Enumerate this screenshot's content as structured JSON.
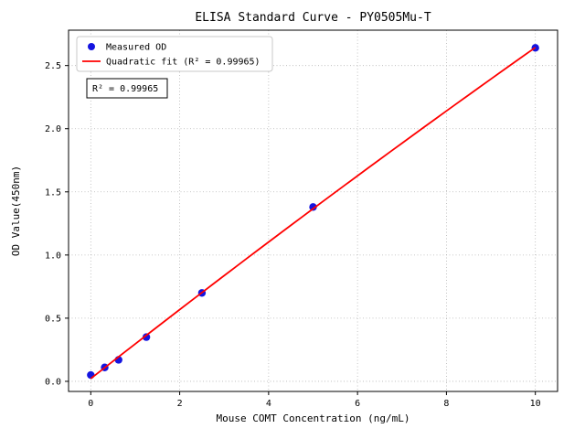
{
  "chart_data": {
    "type": "scatter",
    "title": "ELISA Standard Curve - PY0505Mu-T",
    "xlabel": "Mouse COMT Concentration (ng/mL)",
    "ylabel": "OD Value(450nm)",
    "xlim": [
      -0.5,
      10.5
    ],
    "ylim": [
      -0.08,
      2.78
    ],
    "xticks": [
      0,
      2,
      4,
      6,
      8,
      10
    ],
    "yticks": [
      0.0,
      0.5,
      1.0,
      1.5,
      2.0,
      2.5
    ],
    "grid": true,
    "annotation": "R² = 0.99965",
    "legend": {
      "position": "upper-left",
      "entries": [
        {
          "label": "Measured OD",
          "marker": "point",
          "color": "#1414e0"
        },
        {
          "label": "Quadratic fit (R² = 0.99965)",
          "marker": "line",
          "color": "#ff0000"
        }
      ]
    },
    "style": {
      "point_color": "#1414e0",
      "line_color": "#ff0000",
      "grid_color": "#b5b5b5"
    },
    "series": [
      {
        "name": "Measured OD",
        "type": "scatter",
        "x": [
          0,
          0.313,
          0.625,
          1.25,
          2.5,
          5,
          10
        ],
        "y": [
          0.05,
          0.11,
          0.17,
          0.35,
          0.7,
          1.38,
          2.64
        ]
      },
      {
        "name": "Quadratic fit",
        "type": "line",
        "fit": "quadratic",
        "x_range": [
          0,
          10
        ]
      }
    ]
  }
}
